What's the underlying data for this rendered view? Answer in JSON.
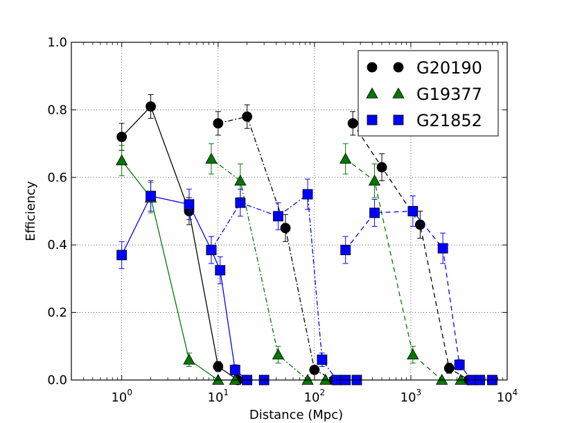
{
  "chart_data": {
    "type": "line",
    "xlabel": "Distance (Mpc)",
    "ylabel": "Efficiency",
    "xscale": "log",
    "xlim": [
      0.3,
      10000
    ],
    "ylim": [
      0.0,
      1.0
    ],
    "grid": true,
    "legend_position": "top-right",
    "x_ticks": [
      {
        "value": 1,
        "base": "10",
        "exp": "0"
      },
      {
        "value": 10,
        "base": "10",
        "exp": "1"
      },
      {
        "value": 100,
        "base": "10",
        "exp": "2"
      },
      {
        "value": 1000,
        "base": "10",
        "exp": "3"
      },
      {
        "value": 10000,
        "base": "10",
        "exp": "4"
      }
    ],
    "y_ticks": [
      {
        "value": 0.0,
        "label": "0.0"
      },
      {
        "value": 0.2,
        "label": "0.2"
      },
      {
        "value": 0.4,
        "label": "0.4"
      },
      {
        "value": 0.6,
        "label": "0.6"
      },
      {
        "value": 0.8,
        "label": "0.8"
      },
      {
        "value": 1.0,
        "label": "1.0"
      }
    ],
    "legend": [
      {
        "name": "G20190",
        "marker": "circle",
        "color": "#000000"
      },
      {
        "name": "G19377",
        "marker": "triangle",
        "color": "#007700"
      },
      {
        "name": "G21852",
        "marker": "square",
        "color": "#0000ff"
      }
    ],
    "series": [
      {
        "name": "G20190",
        "group": 1,
        "marker": "circle",
        "color": "#000000",
        "linestyle": "solid",
        "x": [
          1.0,
          2.0,
          5.0,
          10.0,
          16.0
        ],
        "y": [
          0.72,
          0.81,
          0.5,
          0.04,
          0.0
        ],
        "err": [
          0.04,
          0.035,
          0.04,
          0.015,
          0.0
        ]
      },
      {
        "name": "G20190",
        "group": 2,
        "marker": "circle",
        "color": "#000000",
        "linestyle": "dashdot",
        "x": [
          10.0,
          20.0,
          50.0,
          100.0,
          160.0
        ],
        "y": [
          0.76,
          0.78,
          0.45,
          0.03,
          0.0
        ],
        "err": [
          0.035,
          0.035,
          0.04,
          0.01,
          0.0
        ]
      },
      {
        "name": "G20190",
        "group": 3,
        "marker": "circle",
        "color": "#000000",
        "linestyle": "dashed",
        "x": [
          250.0,
          500.0,
          1250.0,
          2500.0,
          4000.0
        ],
        "y": [
          0.76,
          0.63,
          0.46,
          0.035,
          0.0
        ],
        "err": [
          0.035,
          0.04,
          0.04,
          0.015,
          0.0
        ]
      },
      {
        "name": "G19377",
        "group": 1,
        "marker": "triangle",
        "color": "#007700",
        "linestyle": "solid",
        "x": [
          1.0,
          2.0,
          5.0,
          10.0,
          15.0
        ],
        "y": [
          0.65,
          0.54,
          0.06,
          0.0,
          0.0
        ],
        "err": [
          0.045,
          0.045,
          0.02,
          0.0,
          0.0
        ]
      },
      {
        "name": "G19377",
        "group": 2,
        "marker": "triangle",
        "color": "#007700",
        "linestyle": "dashdot",
        "x": [
          8.5,
          17.0,
          42.0,
          85.0,
          130.0
        ],
        "y": [
          0.655,
          0.59,
          0.075,
          0.0,
          0.0
        ],
        "err": [
          0.045,
          0.05,
          0.025,
          0.0,
          0.0
        ]
      },
      {
        "name": "G19377",
        "group": 3,
        "marker": "triangle",
        "color": "#007700",
        "linestyle": "dashed",
        "x": [
          210.0,
          420.0,
          1050.0,
          2100.0,
          3300.0
        ],
        "y": [
          0.655,
          0.59,
          0.075,
          0.0,
          0.0
        ],
        "err": [
          0.045,
          0.05,
          0.025,
          0.0,
          0.0
        ]
      },
      {
        "name": "G21852",
        "group": 1,
        "marker": "square",
        "color": "#0000ff",
        "linestyle": "solid",
        "x": [
          1.0,
          2.0,
          5.0,
          8.5,
          10.5,
          15.0,
          20.0,
          30.0
        ],
        "y": [
          0.37,
          0.545,
          0.52,
          0.385,
          0.325,
          0.03,
          0.0,
          0.0
        ],
        "err": [
          0.04,
          0.045,
          0.045,
          0.04,
          0.04,
          0.015,
          0.0,
          0.0
        ]
      },
      {
        "name": "G21852",
        "group": 2,
        "marker": "square",
        "color": "#0000ff",
        "linestyle": "dashdot",
        "x": [
          8.5,
          17.0,
          42.0,
          85.0,
          120.0,
          170.0,
          210.0,
          275.0
        ],
        "y": [
          0.385,
          0.525,
          0.485,
          0.55,
          0.06,
          0.0,
          0.0,
          0.0
        ],
        "err": [
          0.04,
          0.04,
          0.04,
          0.045,
          0.02,
          0.0,
          0.0,
          0.0
        ]
      },
      {
        "name": "G21852",
        "group": 3,
        "marker": "square",
        "color": "#0000ff",
        "linestyle": "dashed",
        "x": [
          210.0,
          420.0,
          1050.0,
          2150.0,
          3200.0,
          4300.0,
          5200.0,
          7000.0
        ],
        "y": [
          0.385,
          0.495,
          0.5,
          0.39,
          0.045,
          0.0,
          0.0,
          0.0
        ],
        "err": [
          0.04,
          0.04,
          0.045,
          0.045,
          0.015,
          0.0,
          0.0,
          0.0
        ]
      }
    ]
  }
}
